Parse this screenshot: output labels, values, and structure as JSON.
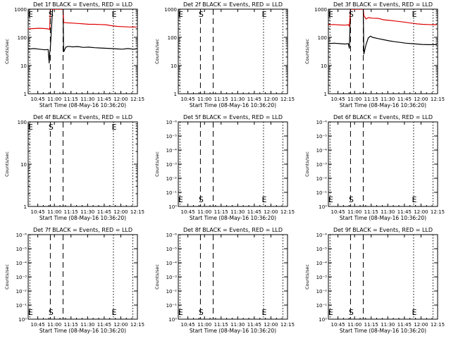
{
  "colors": {
    "background": "#ffffff",
    "axes": "#000000",
    "events": "#000000",
    "lld": "#e00000"
  },
  "common": {
    "xlabel": "Start Time (08-May-16 10:36:20)",
    "ylabel": "Counts/sec",
    "x_tick_labels": [
      "10:45",
      "11:00",
      "11:15",
      "11:30",
      "11:45",
      "12:00",
      "12:15"
    ]
  },
  "chart_data": [
    {
      "type": "line",
      "title": "Det 1f BLACK = Events, RED = LLD",
      "x": {
        "unit": "minutes after 10:36:20",
        "ticks": [
          8.67,
          23.67,
          38.67,
          53.67,
          68.67,
          83.67,
          98.67
        ],
        "range": [
          0,
          98.67
        ]
      },
      "y": {
        "scale": "log",
        "range": [
          1,
          1000
        ],
        "tick_labels": [
          "1",
          "10",
          "100",
          "1000"
        ],
        "minor": true
      },
      "markers": [
        {
          "label": "E",
          "x": 1.5,
          "style": "dotted"
        },
        {
          "label": "S",
          "x": 20.0,
          "style": "dashed"
        },
        {
          "label": "",
          "x": 31.5,
          "style": "dashed"
        },
        {
          "label": "E",
          "x": 77.0,
          "style": "dotted"
        },
        {
          "label": "",
          "x": 94.5,
          "style": "dotted"
        }
      ],
      "series": [
        {
          "name": "Events",
          "color": "#000000",
          "x": [
            0,
            5,
            10,
            15,
            18,
            19,
            19.5,
            20,
            22,
            24,
            26,
            30,
            31.5,
            32,
            34,
            36,
            40,
            45,
            50,
            55,
            60,
            65,
            70,
            75,
            80,
            85,
            90,
            95,
            98
          ],
          "y": [
            38,
            40,
            38,
            36,
            37,
            12,
            30,
            40,
            1000,
            1000,
            1000,
            1000,
            1000,
            30,
            45,
            48,
            46,
            47,
            44,
            45,
            43,
            42,
            41,
            40,
            39,
            38,
            40,
            38,
            39
          ]
        },
        {
          "name": "LLD",
          "color": "#e00000",
          "x": [
            0,
            5,
            10,
            15,
            18,
            19.5,
            20,
            22,
            26,
            30,
            31.5,
            32,
            34,
            40,
            45,
            50,
            55,
            60,
            65,
            70,
            75,
            80,
            85,
            90,
            95,
            98
          ],
          "y": [
            200,
            205,
            210,
            205,
            200,
            190,
            1000,
            1000,
            1000,
            1000,
            1000,
            340,
            330,
            320,
            310,
            300,
            290,
            290,
            285,
            280,
            260,
            245,
            240,
            235,
            232,
            235
          ]
        }
      ]
    },
    {
      "type": "line",
      "title": "Det 2f BLACK = Events, RED = LLD",
      "x": {
        "unit": "minutes after 10:36:20",
        "ticks": [
          8.67,
          23.67,
          38.67,
          53.67,
          68.67,
          83.67,
          98.67
        ],
        "range": [
          0,
          98.67
        ]
      },
      "y": {
        "scale": "log",
        "range": [
          1,
          1000
        ],
        "tick_labels": [
          "1",
          "10",
          "100",
          "1000"
        ],
        "minor": true
      },
      "markers": [
        {
          "label": "E",
          "x": 1.5,
          "style": "dotted"
        },
        {
          "label": "S",
          "x": 20.0,
          "style": "dashed"
        },
        {
          "label": "",
          "x": 31.5,
          "style": "dashed"
        },
        {
          "label": "E",
          "x": 77.0,
          "style": "dotted"
        },
        {
          "label": "",
          "x": 94.5,
          "style": "dotted"
        }
      ],
      "series": []
    },
    {
      "type": "line",
      "title": "Det 3f BLACK = Events, RED = LLD",
      "x": {
        "unit": "minutes after 10:36:20",
        "ticks": [
          8.67,
          23.67,
          38.67,
          53.67,
          68.67,
          83.67,
          98.67
        ],
        "range": [
          0,
          98.67
        ]
      },
      "y": {
        "scale": "log",
        "range": [
          1,
          1000
        ],
        "tick_labels": [
          "1",
          "10",
          "100",
          "1000"
        ],
        "minor": true
      },
      "markers": [
        {
          "label": "E",
          "x": 1.5,
          "style": "dotted"
        },
        {
          "label": "S",
          "x": 20.0,
          "style": "dashed"
        },
        {
          "label": "",
          "x": 31.5,
          "style": "dashed"
        },
        {
          "label": "E",
          "x": 77.0,
          "style": "dotted"
        },
        {
          "label": "",
          "x": 94.5,
          "style": "dotted"
        }
      ],
      "series": [
        {
          "name": "Events",
          "color": "#000000",
          "x": [
            0,
            5,
            10,
            15,
            18,
            19,
            20,
            22,
            26,
            30,
            31.5,
            32,
            34,
            36,
            38,
            40,
            45,
            50,
            55,
            60,
            65,
            70,
            75,
            80,
            85,
            90,
            95,
            98
          ],
          "y": [
            60,
            62,
            60,
            58,
            60,
            40,
            1000,
            1000,
            1000,
            1000,
            1000,
            25,
            55,
            95,
            110,
            100,
            90,
            82,
            75,
            70,
            66,
            62,
            60,
            58,
            56,
            55,
            55,
            56
          ]
        },
        {
          "name": "LLD",
          "color": "#e00000",
          "x": [
            0,
            5,
            10,
            15,
            18,
            19,
            20,
            22,
            26,
            30,
            31.5,
            32,
            34,
            36,
            40,
            45,
            50,
            55,
            60,
            65,
            70,
            75,
            80,
            85,
            90,
            95,
            98
          ],
          "y": [
            280,
            285,
            275,
            270,
            280,
            250,
            1000,
            1000,
            1000,
            1000,
            1000,
            600,
            450,
            500,
            480,
            470,
            420,
            400,
            380,
            360,
            340,
            320,
            300,
            290,
            285,
            280,
            282
          ]
        }
      ]
    },
    {
      "type": "line",
      "title": "Det 4f BLACK = Events, RED = LLD",
      "x": {
        "unit": "minutes after 10:36:20",
        "ticks": [
          8.67,
          23.67,
          38.67,
          53.67,
          68.67,
          83.67,
          98.67
        ],
        "range": [
          0,
          98.67
        ]
      },
      "y": {
        "scale": "log",
        "range": [
          1,
          100
        ],
        "tick_labels": [
          "1",
          "10",
          "100"
        ],
        "minor": true
      },
      "markers": [
        {
          "label": "E",
          "x": 1.5,
          "style": "dotted"
        },
        {
          "label": "S",
          "x": 20.0,
          "style": "dashed"
        },
        {
          "label": "",
          "x": 31.5,
          "style": "dashed"
        },
        {
          "label": "E",
          "x": 77.0,
          "style": "dotted"
        },
        {
          "label": "",
          "x": 94.5,
          "style": "dotted"
        }
      ],
      "series": []
    },
    {
      "type": "line",
      "title": "Det 5f BLACK = Events, RED = LLD",
      "x": {
        "unit": "minutes after 10:36:20",
        "ticks": [
          8.67,
          23.67,
          38.67,
          53.67,
          68.67,
          83.67,
          98.67
        ],
        "range": [
          0,
          98.67
        ]
      },
      "y": {
        "scale": "log",
        "range": [
          1,
          1e-06
        ],
        "tick_labels": [
          "10⁰",
          "10⁻¹",
          "10⁻²",
          "10⁻³",
          "10⁻⁴",
          "10⁻⁵",
          "10⁻⁶"
        ],
        "minor": false
      },
      "markers": [
        {
          "label": "E",
          "x": 1.5,
          "style": "dotted"
        },
        {
          "label": "S",
          "x": 20.0,
          "style": "dashed"
        },
        {
          "label": "",
          "x": 31.5,
          "style": "dashed"
        },
        {
          "label": "E",
          "x": 77.0,
          "style": "dotted"
        },
        {
          "label": "",
          "x": 94.5,
          "style": "dotted"
        }
      ],
      "series": []
    },
    {
      "type": "line",
      "title": "Det 6f BLACK = Events, RED = LLD",
      "x": {
        "unit": "minutes after 10:36:20",
        "ticks": [
          8.67,
          23.67,
          38.67,
          53.67,
          68.67,
          83.67,
          98.67
        ],
        "range": [
          0,
          98.67
        ]
      },
      "y": {
        "scale": "log",
        "range": [
          1,
          1e-06
        ],
        "tick_labels": [
          "10⁰",
          "10⁻¹",
          "10⁻²",
          "10⁻³",
          "10⁻⁴",
          "10⁻⁵",
          "10⁻⁶"
        ],
        "minor": false
      },
      "markers": [
        {
          "label": "E",
          "x": 1.5,
          "style": "dotted"
        },
        {
          "label": "S",
          "x": 20.0,
          "style": "dashed"
        },
        {
          "label": "",
          "x": 31.5,
          "style": "dashed"
        },
        {
          "label": "E",
          "x": 77.0,
          "style": "dotted"
        },
        {
          "label": "",
          "x": 94.5,
          "style": "dotted"
        }
      ],
      "series": []
    },
    {
      "type": "line",
      "title": "Det 7f BLACK = Events, RED = LLD",
      "x": {
        "unit": "minutes after 10:36:20",
        "ticks": [
          8.67,
          23.67,
          38.67,
          53.67,
          68.67,
          83.67,
          98.67
        ],
        "range": [
          0,
          98.67
        ]
      },
      "y": {
        "scale": "log",
        "range": [
          1,
          1e-06
        ],
        "tick_labels": [
          "10⁰",
          "10⁻¹",
          "10⁻²",
          "10⁻³",
          "10⁻⁴",
          "10⁻⁵",
          "10⁻⁶"
        ],
        "minor": false
      },
      "markers": [
        {
          "label": "E",
          "x": 1.5,
          "style": "dotted"
        },
        {
          "label": "S",
          "x": 20.0,
          "style": "dashed"
        },
        {
          "label": "",
          "x": 31.5,
          "style": "dashed"
        },
        {
          "label": "E",
          "x": 77.0,
          "style": "dotted"
        },
        {
          "label": "",
          "x": 94.5,
          "style": "dotted"
        }
      ],
      "series": []
    },
    {
      "type": "line",
      "title": "Det 8f BLACK = Events, RED = LLD",
      "x": {
        "unit": "minutes after 10:36:20",
        "ticks": [
          8.67,
          23.67,
          38.67,
          53.67,
          68.67,
          83.67,
          98.67
        ],
        "range": [
          0,
          98.67
        ]
      },
      "y": {
        "scale": "log",
        "range": [
          1,
          1e-06
        ],
        "tick_labels": [
          "10⁰",
          "10⁻¹",
          "10⁻²",
          "10⁻³",
          "10⁻⁴",
          "10⁻⁵",
          "10⁻⁶"
        ],
        "minor": false
      },
      "markers": [
        {
          "label": "E",
          "x": 1.5,
          "style": "dotted"
        },
        {
          "label": "S",
          "x": 20.0,
          "style": "dashed"
        },
        {
          "label": "",
          "x": 31.5,
          "style": "dashed"
        },
        {
          "label": "E",
          "x": 77.0,
          "style": "dotted"
        },
        {
          "label": "",
          "x": 94.5,
          "style": "dotted"
        }
      ],
      "series": []
    },
    {
      "type": "line",
      "title": "Det 9f BLACK = Events, RED = LLD",
      "x": {
        "unit": "minutes after 10:36:20",
        "ticks": [
          8.67,
          23.67,
          38.67,
          53.67,
          68.67,
          83.67,
          98.67
        ],
        "range": [
          0,
          98.67
        ]
      },
      "y": {
        "scale": "log",
        "range": [
          1,
          1e-06
        ],
        "tick_labels": [
          "10⁰",
          "10⁻¹",
          "10⁻²",
          "10⁻³",
          "10⁻⁴",
          "10⁻⁵",
          "10⁻⁶"
        ],
        "minor": false
      },
      "markers": [
        {
          "label": "E",
          "x": 1.5,
          "style": "dotted"
        },
        {
          "label": "S",
          "x": 20.0,
          "style": "dashed"
        },
        {
          "label": "",
          "x": 31.5,
          "style": "dashed"
        },
        {
          "label": "E",
          "x": 77.0,
          "style": "dotted"
        },
        {
          "label": "",
          "x": 94.5,
          "style": "dotted"
        }
      ],
      "series": []
    }
  ]
}
